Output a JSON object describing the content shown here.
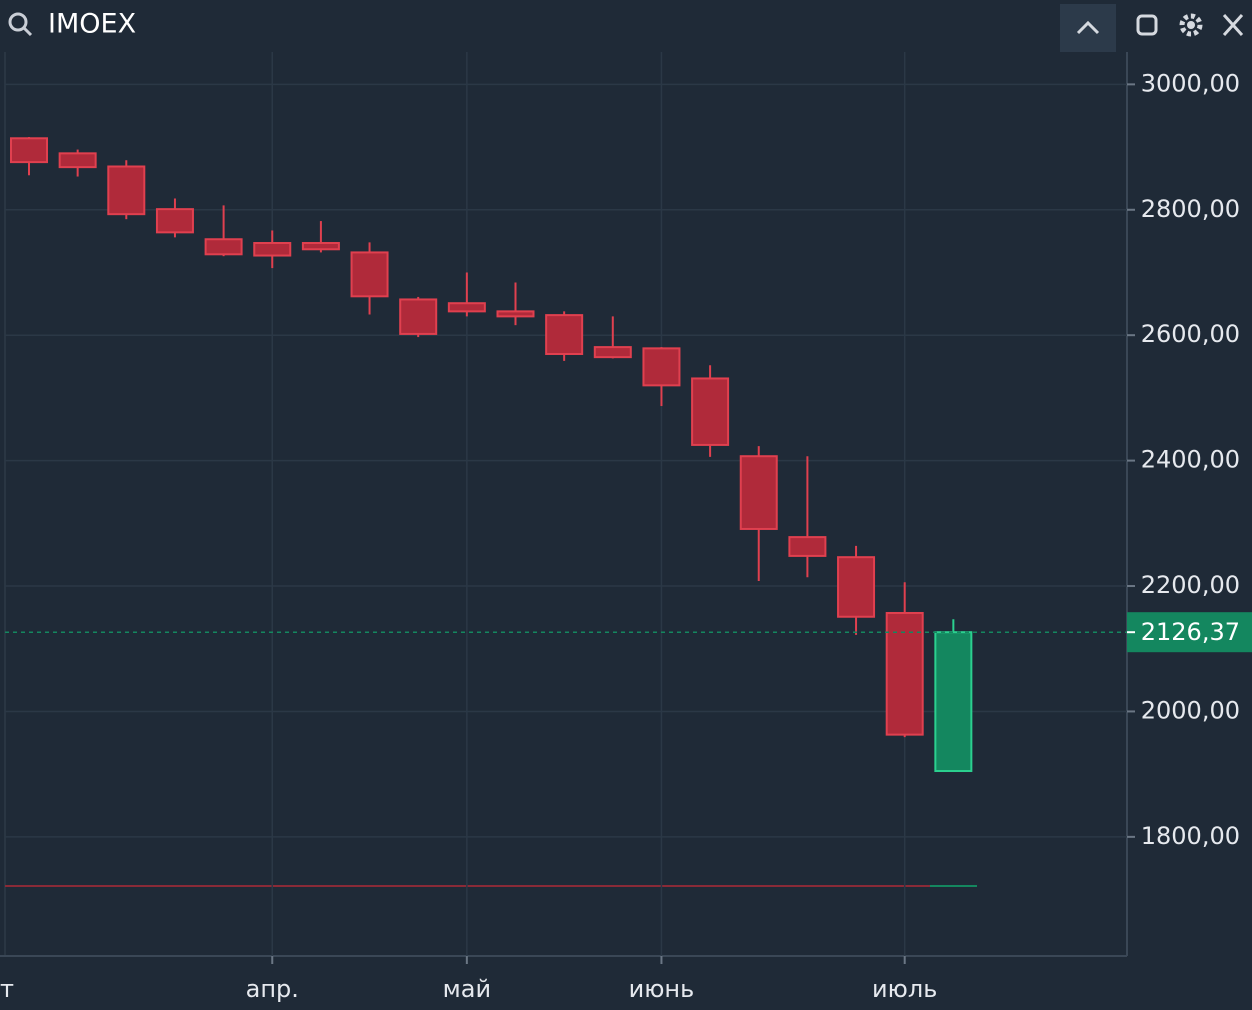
{
  "header": {
    "symbol": "IMOEX"
  },
  "chart_data": {
    "type": "candlestick",
    "categories": [
      null,
      null,
      null,
      null,
      null,
      "апр.",
      null,
      null,
      null,
      "май",
      null,
      null,
      null,
      "июнь",
      null,
      null,
      null,
      null,
      "июль",
      null
    ],
    "x_edge_label": "т",
    "open": [
      2914,
      2890,
      2869,
      2801,
      2753,
      2747,
      2747,
      2732,
      2657,
      2651,
      2638,
      2632,
      2581,
      2579,
      2531,
      2407,
      2278,
      2246,
      2157,
      1905
    ],
    "high": [
      2916,
      2896,
      2879,
      2818,
      2807,
      2767,
      2782,
      2748,
      2661,
      2700,
      2684,
      2638,
      2630,
      2581,
      2552,
      2423,
      2407,
      2264,
      2206,
      2147
    ],
    "low": [
      2855,
      2853,
      2785,
      2756,
      2726,
      2707,
      2732,
      2633,
      2597,
      2630,
      2616,
      2559,
      2563,
      2487,
      2406,
      2208,
      2214,
      2122,
      1959,
      1905
    ],
    "close": [
      2876,
      2868,
      2793,
      2764,
      2729,
      2727,
      2737,
      2662,
      2602,
      2638,
      2630,
      2570,
      2565,
      2520,
      2425,
      2291,
      2248,
      2151,
      1963,
      2126.37
    ],
    "up_color": "#14875f",
    "down_color": "#b02a3a",
    "ylim": [
      1610,
      3050
    ],
    "yticks": [
      {
        "value": 1800,
        "label": "1800,00"
      },
      {
        "value": 2000,
        "label": "2000,00"
      },
      {
        "value": 2200,
        "label": "2200,00"
      },
      {
        "value": 2400,
        "label": "2400,00"
      },
      {
        "value": 2600,
        "label": "2600,00"
      },
      {
        "value": 2800,
        "label": "2800,00"
      },
      {
        "value": 3000,
        "label": "3000,00"
      }
    ],
    "last_price": {
      "value": 2126.37,
      "label": "2126,37"
    },
    "grid": true
  }
}
